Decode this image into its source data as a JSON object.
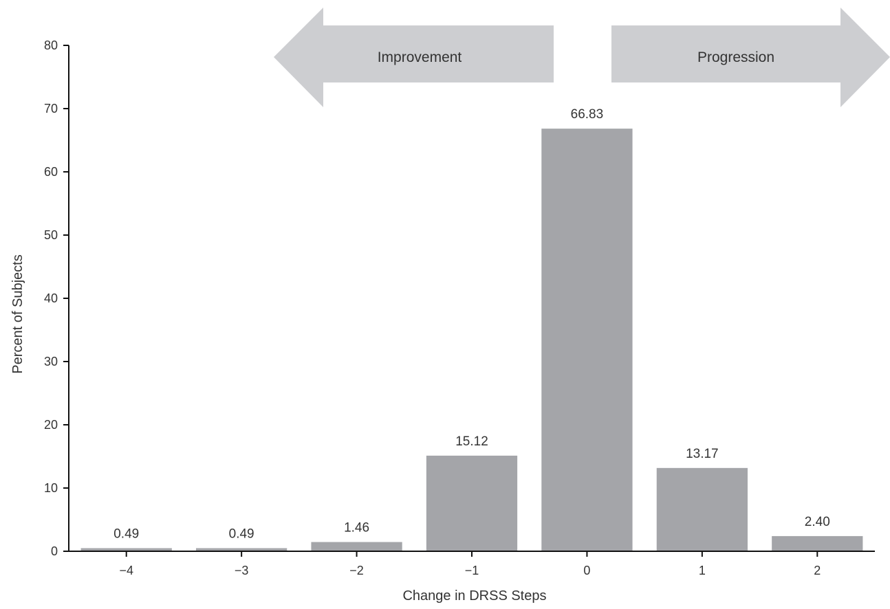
{
  "chart_data": {
    "type": "bar",
    "xlabel": "Change in DRSS Steps",
    "ylabel": "Percent of Subjects",
    "categories": [
      "−4",
      "−3",
      "−2",
      "−1",
      "0",
      "1",
      "2"
    ],
    "values": [
      0.49,
      0.49,
      1.46,
      15.12,
      66.83,
      13.17,
      2.4
    ],
    "value_labels": [
      "0.49",
      "0.49",
      "1.46",
      "15.12",
      "66.83",
      "13.17",
      "2.40"
    ],
    "ylim": [
      0,
      80
    ],
    "yticks": [
      0,
      10,
      20,
      30,
      40,
      50,
      60,
      70,
      80
    ],
    "grid": false,
    "annotations": [
      {
        "text": "Improvement",
        "direction": "left"
      },
      {
        "text": "Progression",
        "direction": "right"
      }
    ]
  },
  "colors": {
    "bar": "#a4a5a9",
    "arrow": "#cdced1",
    "axis": "#111111",
    "text": "#333333"
  }
}
